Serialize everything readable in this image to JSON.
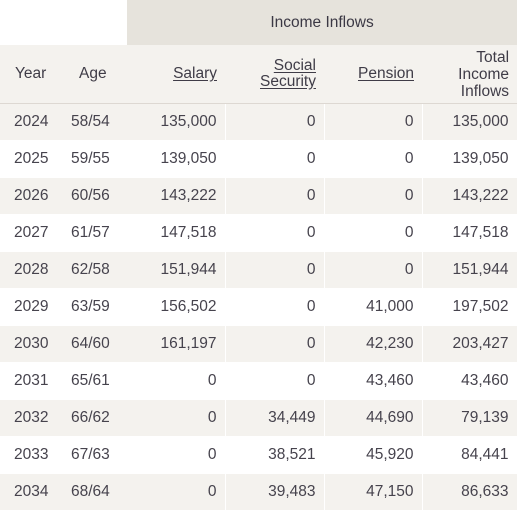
{
  "table": {
    "group_header": "Income Inflows",
    "columns": {
      "year": "Year",
      "age": "Age",
      "salary": "Salary",
      "social_security": [
        "Social",
        "Security"
      ],
      "pension": "Pension",
      "total": [
        "Total",
        "Income",
        "Inflows"
      ]
    },
    "rows": [
      {
        "year": "2024",
        "age": "58/54",
        "salary": "135,000",
        "social_security": "0",
        "pension": "0",
        "total": "135,000"
      },
      {
        "year": "2025",
        "age": "59/55",
        "salary": "139,050",
        "social_security": "0",
        "pension": "0",
        "total": "139,050"
      },
      {
        "year": "2026",
        "age": "60/56",
        "salary": "143,222",
        "social_security": "0",
        "pension": "0",
        "total": "143,222"
      },
      {
        "year": "2027",
        "age": "61/57",
        "salary": "147,518",
        "social_security": "0",
        "pension": "0",
        "total": "147,518"
      },
      {
        "year": "2028",
        "age": "62/58",
        "salary": "151,944",
        "social_security": "0",
        "pension": "0",
        "total": "151,944"
      },
      {
        "year": "2029",
        "age": "63/59",
        "salary": "156,502",
        "social_security": "0",
        "pension": "41,000",
        "total": "197,502"
      },
      {
        "year": "2030",
        "age": "64/60",
        "salary": "161,197",
        "social_security": "0",
        "pension": "42,230",
        "total": "203,427"
      },
      {
        "year": "2031",
        "age": "65/61",
        "salary": "0",
        "social_security": "0",
        "pension": "43,460",
        "total": "43,460"
      },
      {
        "year": "2032",
        "age": "66/62",
        "salary": "0",
        "social_security": "34,449",
        "pension": "44,690",
        "total": "79,139"
      },
      {
        "year": "2033",
        "age": "67/63",
        "salary": "0",
        "social_security": "38,521",
        "pension": "45,920",
        "total": "84,441"
      },
      {
        "year": "2034",
        "age": "68/64",
        "salary": "0",
        "social_security": "39,483",
        "pension": "47,150",
        "total": "86,633"
      }
    ]
  },
  "colors": {
    "group_header_bg": "#e6e3dc",
    "stripe_bg": "#f4f2ee",
    "text": "#46434d"
  }
}
